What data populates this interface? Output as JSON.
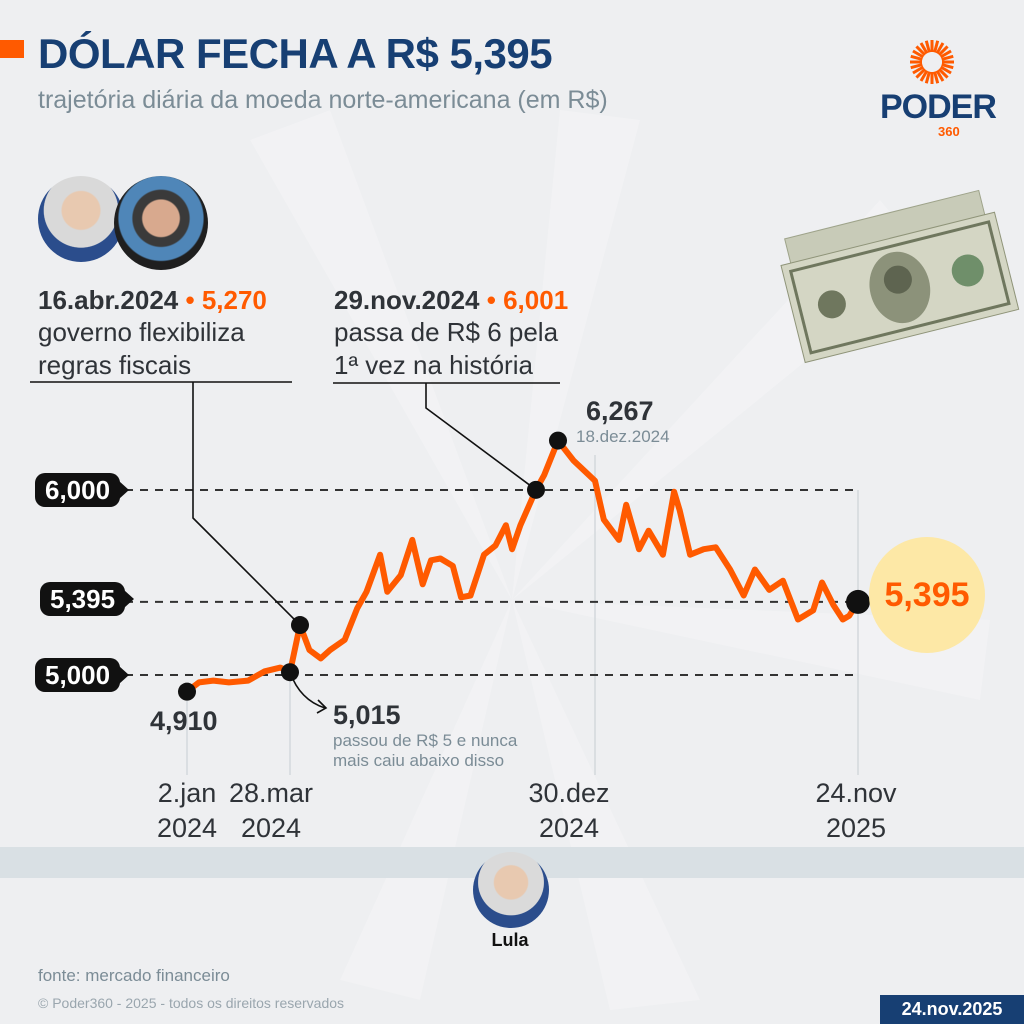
{
  "header": {
    "title": "DÓLAR FECHA A R$ 5,395",
    "subtitle": "trajetória diária da moeda norte-americana (em R$)",
    "logo_text": "PODER",
    "logo_sub": "360",
    "brand_color": "#173F73",
    "accent_color": "#FF5A00"
  },
  "annotations": {
    "fiscal": {
      "date": "16.abr.2024",
      "sep": "•",
      "value": "5,270",
      "line1": "governo flexibiliza",
      "line2": "regras fiscais"
    },
    "six": {
      "date": "29.nov.2024",
      "sep": "•",
      "value": "6,001",
      "line1": "passa de R$ 6 pela",
      "line2": "1ª vez na história"
    },
    "peak": {
      "value": "6,267",
      "date": "18.dez.2024"
    },
    "start": {
      "value": "4,910"
    },
    "five": {
      "value": "5,015",
      "line1": "passou de R$ 5 e nunca",
      "line2": "mais caiu abaixo disso"
    },
    "last": {
      "value": "5,395"
    }
  },
  "chart_data": {
    "type": "line",
    "title": "DÓLAR FECHA A R$ 5,395",
    "subtitle": "trajetória diária da moeda norte-americana (em R$)",
    "xlabel": "",
    "ylabel": "",
    "grid": false,
    "reference_lines": [
      {
        "value": 6.0,
        "label": "6,000"
      },
      {
        "value": 5.395,
        "label": "5,395"
      },
      {
        "value": 5.0,
        "label": "5,000"
      }
    ],
    "x_ticks": [
      {
        "date": "2024-01-02",
        "line1": "2.jan",
        "line2": "2024"
      },
      {
        "date": "2024-03-28",
        "line1": "28.mar",
        "line2": "2024"
      },
      {
        "date": "2024-12-30",
        "line1": "30.dez",
        "line2": "2024"
      },
      {
        "date": "2025-11-24",
        "line1": "24.nov",
        "line2": "2025"
      }
    ],
    "series": [
      {
        "color": "#FF5A00",
        "points": [
          [
            "2024-01-02",
            4.91
          ],
          [
            "2024-01-12",
            4.96
          ],
          [
            "2024-01-24",
            4.97
          ],
          [
            "2024-02-06",
            4.96
          ],
          [
            "2024-02-22",
            4.97
          ],
          [
            "2024-03-07",
            5.02
          ],
          [
            "2024-03-20",
            5.04
          ],
          [
            "2024-03-28",
            5.015
          ],
          [
            "2024-04-16",
            5.27
          ],
          [
            "2024-04-25",
            5.135
          ],
          [
            "2024-05-06",
            5.09
          ],
          [
            "2024-05-15",
            5.135
          ],
          [
            "2024-05-29",
            5.19
          ],
          [
            "2024-06-10",
            5.36
          ],
          [
            "2024-06-19",
            5.45
          ],
          [
            "2024-07-02",
            5.65
          ],
          [
            "2024-07-09",
            5.45
          ],
          [
            "2024-07-22",
            5.54
          ],
          [
            "2024-08-02",
            5.73
          ],
          [
            "2024-08-12",
            5.49
          ],
          [
            "2024-08-20",
            5.62
          ],
          [
            "2024-08-29",
            5.63
          ],
          [
            "2024-09-10",
            5.59
          ],
          [
            "2024-09-18",
            5.42
          ],
          [
            "2024-09-27",
            5.43
          ],
          [
            "2024-10-10",
            5.65
          ],
          [
            "2024-10-21",
            5.7
          ],
          [
            "2024-10-31",
            5.81
          ],
          [
            "2024-11-06",
            5.68
          ],
          [
            "2024-11-14",
            5.81
          ],
          [
            "2024-11-29",
            6.001
          ],
          [
            "2024-12-06",
            6.08
          ],
          [
            "2024-12-18",
            6.267
          ],
          [
            "2024-12-23",
            6.16
          ],
          [
            "2024-12-30",
            6.05
          ],
          [
            "2025-01-10",
            5.84
          ],
          [
            "2025-01-29",
            5.73
          ],
          [
            "2025-02-07",
            5.92
          ],
          [
            "2025-02-23",
            5.68
          ],
          [
            "2025-03-07",
            5.78
          ],
          [
            "2025-03-25",
            5.65
          ],
          [
            "2025-04-08",
            5.99
          ],
          [
            "2025-04-15",
            5.89
          ],
          [
            "2025-04-28",
            5.65
          ],
          [
            "2025-05-15",
            5.68
          ],
          [
            "2025-05-30",
            5.69
          ],
          [
            "2025-06-17",
            5.57
          ],
          [
            "2025-07-04",
            5.43
          ],
          [
            "2025-07-18",
            5.57
          ],
          [
            "2025-08-05",
            5.46
          ],
          [
            "2025-08-22",
            5.51
          ],
          [
            "2025-09-10",
            5.3
          ],
          [
            "2025-09-29",
            5.35
          ],
          [
            "2025-10-10",
            5.5
          ],
          [
            "2025-10-24",
            5.38
          ],
          [
            "2025-11-05",
            5.3
          ],
          [
            "2025-11-13",
            5.32
          ],
          [
            "2025-11-24",
            5.395
          ]
        ]
      }
    ],
    "highlighted_points": [
      {
        "date": "2024-01-02",
        "value": 4.91
      },
      {
        "date": "2024-03-28",
        "value": 5.015
      },
      {
        "date": "2024-04-16",
        "value": 5.27
      },
      {
        "date": "2024-11-29",
        "value": 6.001
      },
      {
        "date": "2024-12-18",
        "value": 6.267
      },
      {
        "date": "2025-11-24",
        "value": 5.395
      }
    ]
  },
  "people": {
    "bottom_name": "Lula"
  },
  "footer": {
    "source": "fonte: mercado financeiro",
    "copyright": "© Poder360 - 2025 - todos os direitos reservados",
    "date": "24.nov.2025"
  }
}
